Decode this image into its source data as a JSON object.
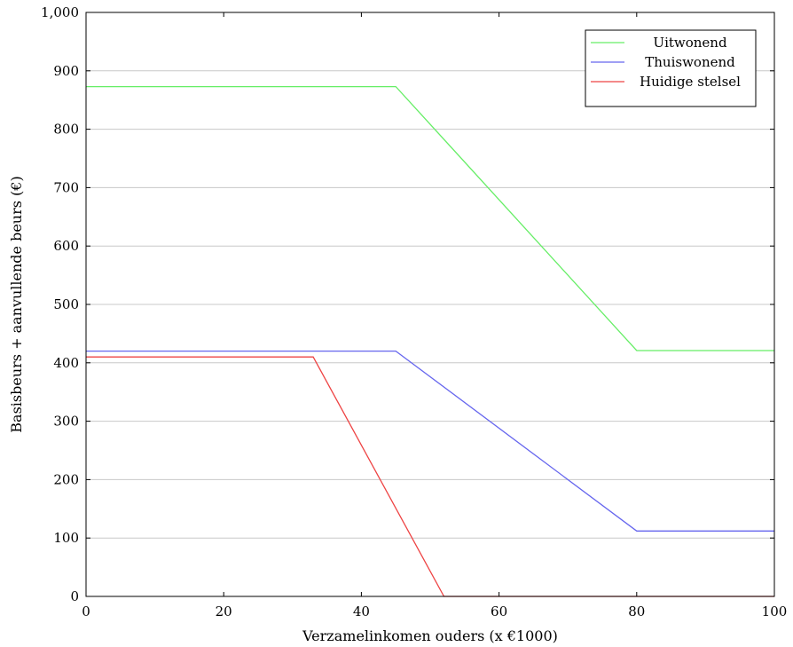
{
  "chart_data": {
    "type": "line",
    "title": "",
    "xlabel": "Verzamelinkomen ouders (x €1000)",
    "ylabel": "Basisbeurs + aanvullende beurs (€)",
    "xlim": [
      0,
      100
    ],
    "ylim": [
      0,
      1000
    ],
    "xticks": [
      0,
      20,
      40,
      60,
      80,
      100
    ],
    "xtick_labels": [
      "0",
      "20",
      "40",
      "60",
      "80",
      "100"
    ],
    "yticks": [
      0,
      100,
      200,
      300,
      400,
      500,
      600,
      700,
      800,
      900,
      1000
    ],
    "ytick_labels": [
      "0",
      "100",
      "200",
      "300",
      "400",
      "500",
      "600",
      "700",
      "800",
      "900",
      "1,000"
    ],
    "grid": "horizontal",
    "legend_position": "top-right",
    "series": [
      {
        "name": "Uitwonend",
        "color": "#66ee66",
        "x": [
          0,
          45,
          80,
          100
        ],
        "y": [
          873,
          873,
          421,
          421
        ]
      },
      {
        "name": "Thuiswonend",
        "color": "#6666ee",
        "x": [
          0,
          45,
          80,
          100
        ],
        "y": [
          420,
          420,
          112,
          112
        ]
      },
      {
        "name": "Huidige stelsel",
        "color": "#ee4444",
        "x": [
          0,
          33,
          52,
          100
        ],
        "y": [
          410,
          410,
          0,
          0
        ]
      }
    ]
  }
}
